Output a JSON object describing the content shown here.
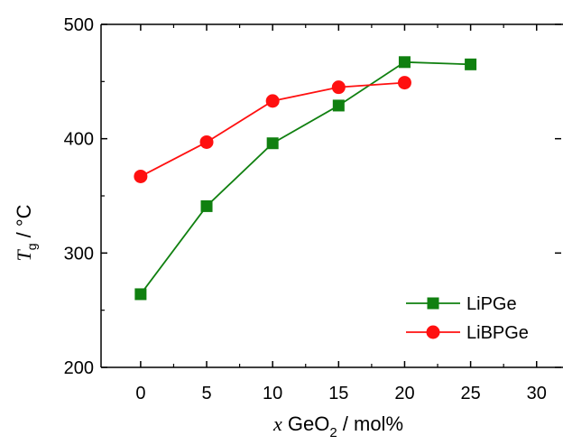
{
  "chart_data": {
    "type": "line",
    "xlabel": {
      "var": "x",
      "main": " GeO",
      "sub": "2",
      "rest": " / mol%"
    },
    "ylabel": {
      "var": "T",
      "sub": "g",
      "rest": " / °C"
    },
    "xlim": [
      -3,
      32
    ],
    "ylim": [
      200,
      500
    ],
    "xticks": [
      0,
      5,
      10,
      15,
      20,
      25,
      30
    ],
    "yticks": [
      200,
      300,
      400,
      500
    ],
    "x_tick_labels": [
      "0",
      "5",
      "10",
      "15",
      "20",
      "25",
      "30"
    ],
    "y_tick_labels": [
      "200",
      "300",
      "400",
      "500"
    ],
    "grid": false,
    "legend_position": "bottom-right",
    "series": [
      {
        "name": "LiPGe",
        "marker": "square",
        "color": "#108010",
        "x": [
          0,
          5,
          10,
          15,
          20,
          25
        ],
        "y": [
          264,
          341,
          396,
          429,
          467,
          465
        ]
      },
      {
        "name": "LiBPGe",
        "marker": "circle",
        "color": "#ff1010",
        "x": [
          0,
          5,
          10,
          15,
          20
        ],
        "y": [
          367,
          397,
          433,
          445,
          449
        ]
      }
    ]
  }
}
